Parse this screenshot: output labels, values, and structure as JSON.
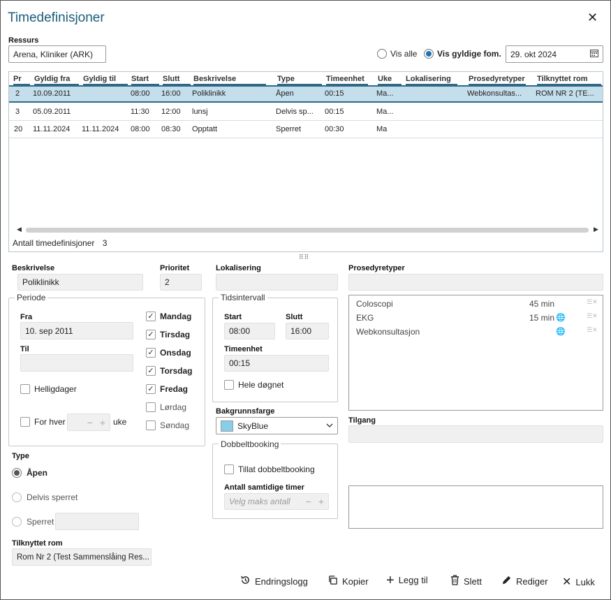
{
  "window": {
    "title": "Timedefinisjoner"
  },
  "ressurs": {
    "label": "Ressurs",
    "value": "Arena, Kliniker (ARK)"
  },
  "filter": {
    "vis_alle": "Vis alle",
    "vis_gyldige": "Vis gyldige fom.",
    "date": "29. okt 2024"
  },
  "grid": {
    "columns": [
      "Pr",
      "Gyldig fra",
      "Gyldig til",
      "Start",
      "Slutt",
      "Beskrivelse",
      "Type",
      "Timeenhet",
      "Uke",
      "Lokalisering",
      "Prosedyretyper",
      "Tilknyttet rom"
    ],
    "rows": [
      [
        "2",
        "10.09.2011",
        "",
        "08:00",
        "16:00",
        "Poliklinikk",
        "Åpen",
        "00:15",
        "Ma...",
        "",
        "Webkonsultas...",
        "ROM NR 2 (TE..."
      ],
      [
        "3",
        "05.09.2011",
        "",
        "11:30",
        "12:00",
        "lunsj",
        "Delvis sp...",
        "00:15",
        "Ma...",
        "",
        "",
        ""
      ],
      [
        "20",
        "11.11.2024",
        "11.11.2024",
        "08:00",
        "08:30",
        "Opptatt",
        "Sperret",
        "00:30",
        "Ma",
        "",
        "",
        ""
      ]
    ],
    "count_label": "Antall timedefinisjoner",
    "count_value": "3"
  },
  "form": {
    "beskrivelse_label": "Beskrivelse",
    "beskrivelse_value": "Poliklinikk",
    "prioritet_label": "Prioritet",
    "prioritet_value": "2",
    "lokalisering_label": "Lokalisering",
    "lokalisering_value": "",
    "prosedyretyper_label": "Prosedyretyper",
    "periode_legend": "Periode",
    "fra_label": "Fra",
    "fra_value": "10. sep 2011",
    "til_label": "Til",
    "til_value": "",
    "helligdager": "Helligdager",
    "for_hver": "For hver",
    "uke": "uke",
    "days": [
      {
        "label": "Mandag",
        "checked": "✓"
      },
      {
        "label": "Tirsdag",
        "checked": "✓"
      },
      {
        "label": "Onsdag",
        "checked": "✓"
      },
      {
        "label": "Torsdag",
        "checked": "✓"
      },
      {
        "label": "Fredag",
        "checked": "✓"
      },
      {
        "label": "Lørdag",
        "checked": ""
      },
      {
        "label": "Søndag",
        "checked": ""
      }
    ],
    "tidsintervall_legend": "Tidsintervall",
    "start_label": "Start",
    "start_value": "08:00",
    "slutt_label": "Slutt",
    "slutt_value": "16:00",
    "timeenhet_label": "Timeenhet",
    "timeenhet_value": "00:15",
    "hele_dognet": "Hele døgnet",
    "bakgrunnsfarge_label": "Bakgrunnsfarge",
    "bakgrunnsfarge_value": "SkyBlue",
    "bakgrunnsfarge_color": "#87ceeb",
    "dobbeltbooking_legend": "Dobbeltbooking",
    "tillat_dobbelt": "Tillat dobbeltbooking",
    "antall_samtidige_label": "Antall samtidige timer",
    "antall_samtidige_placeholder": "Velg maks antall",
    "type_label": "Type",
    "type_apen": "Åpen",
    "type_delvis": "Delvis sperret",
    "type_sperret": "Sperret",
    "tilknyttet_rom_label": "Tilknyttet rom",
    "tilknyttet_rom_value": "Rom Nr 2 (Test Sammenslåing Res...",
    "tilgang_label": "Tilgang",
    "procedures": [
      {
        "name": "Coloscopi",
        "duration": "45 min",
        "globe": ""
      },
      {
        "name": "EKG",
        "duration": "15 min",
        "globe": "🌐"
      },
      {
        "name": "Webkonsultasjon",
        "duration": "",
        "globe": "🌐"
      }
    ]
  },
  "toolbar": {
    "endringslogg": "Endringslogg",
    "kopier": "Kopier",
    "legg_til": "Legg til",
    "slett": "Slett",
    "rediger": "Rediger",
    "lukk": "Lukk"
  }
}
